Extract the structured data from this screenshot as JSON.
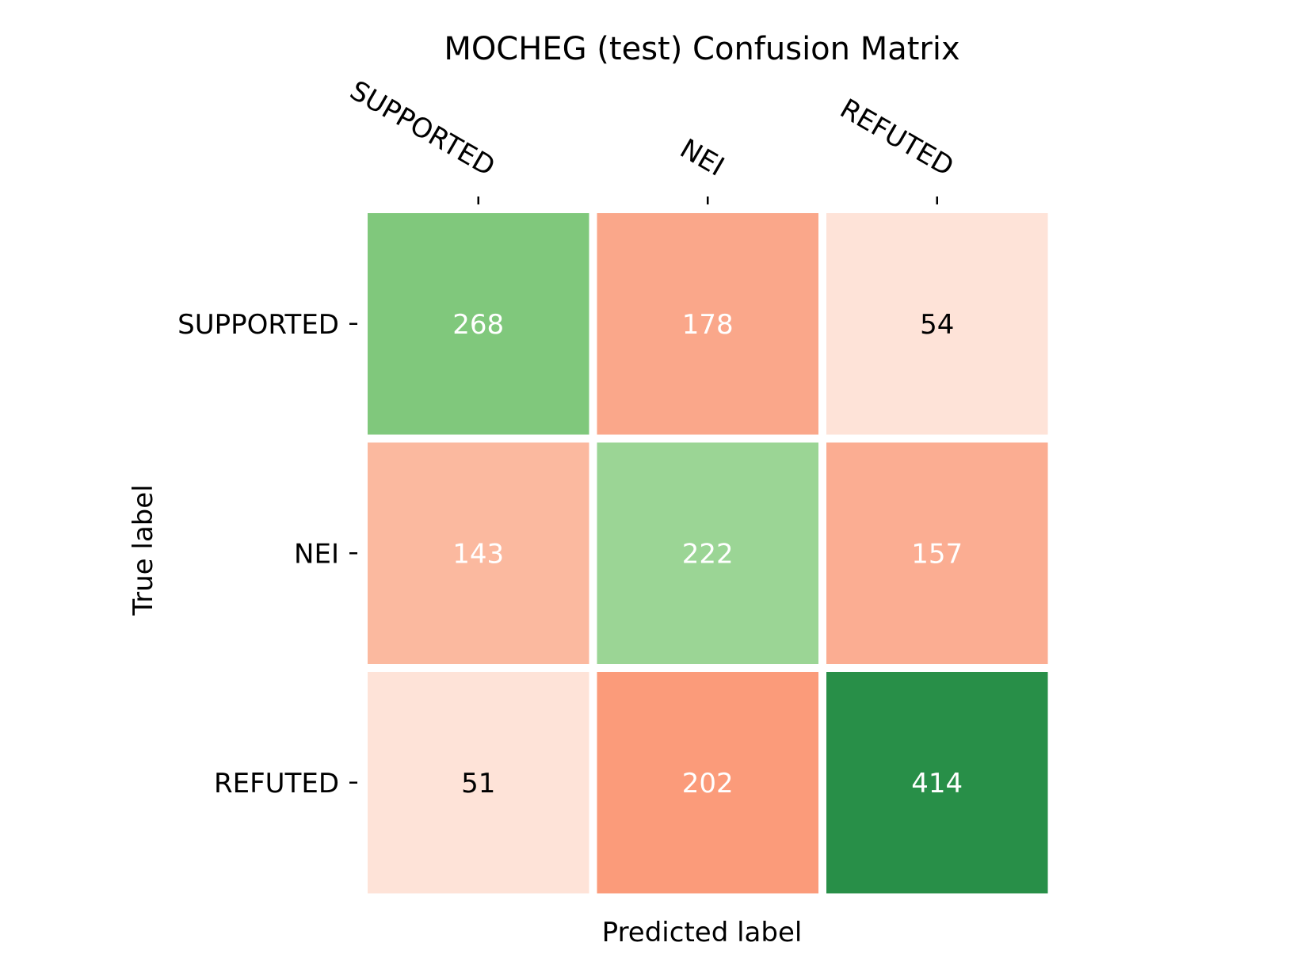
{
  "chart_data": {
    "type": "heatmap",
    "title": "MOCHEG (test) Confusion Matrix",
    "xlabel": "Predicted label",
    "ylabel": "True label",
    "x_categories": [
      "SUPPORTED",
      "NEI",
      "REFUTED"
    ],
    "y_categories": [
      "SUPPORTED",
      "NEI",
      "REFUTED"
    ],
    "values": [
      [
        268,
        178,
        54
      ],
      [
        143,
        222,
        157
      ],
      [
        51,
        202,
        414
      ]
    ],
    "cell_colors": [
      [
        "#80c87c",
        "#faa78a",
        "#fee3d8"
      ],
      [
        "#fbb99f",
        "#9bd595",
        "#fbad92"
      ],
      [
        "#fee3d8",
        "#fb9b7a",
        "#288f48"
      ]
    ],
    "label_colors": [
      [
        "#ffffff",
        "#ffffff",
        "#000000"
      ],
      [
        "#ffffff",
        "#ffffff",
        "#ffffff"
      ],
      [
        "#000000",
        "#ffffff",
        "#ffffff"
      ]
    ],
    "x_tick_position": "top",
    "colorbar": false
  }
}
